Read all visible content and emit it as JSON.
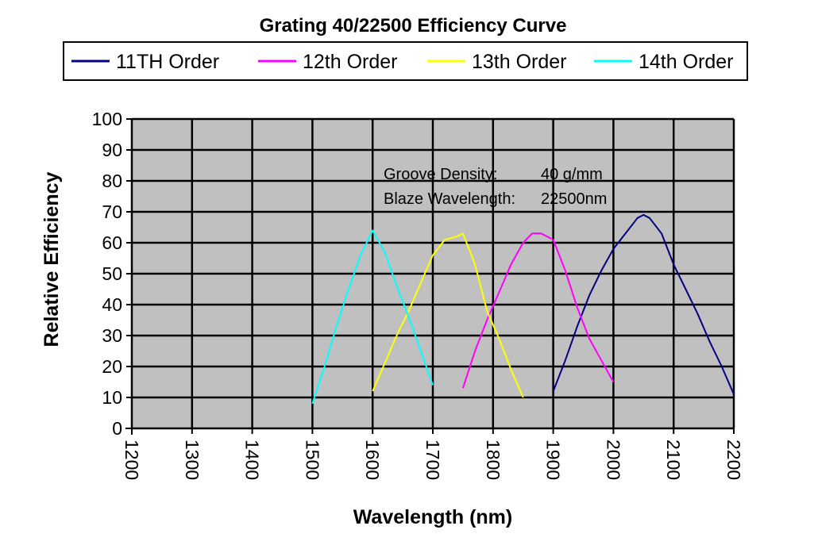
{
  "chart_data": {
    "type": "line",
    "title": "Grating 40/22500 Efficiency Curve",
    "xlabel": "Wavelength (nm)",
    "ylabel": "Relative Efficiency",
    "xlim": [
      1200,
      2200
    ],
    "ylim": [
      0,
      100
    ],
    "xticks": [
      "1200",
      "1300",
      "1400",
      "1500",
      "1600",
      "1700",
      "1800",
      "1900",
      "2000",
      "2100",
      "2200"
    ],
    "yticks": [
      "0",
      "10",
      "20",
      "30",
      "40",
      "50",
      "60",
      "70",
      "80",
      "90",
      "100"
    ],
    "grid": true,
    "legend_position": "top",
    "annotations": [
      {
        "label": "Groove Density:",
        "value": "40 g/mm"
      },
      {
        "label": "Blaze Wavelength:",
        "value": "22500nm"
      }
    ],
    "series": [
      {
        "name": "11TH Order",
        "color": "#000080",
        "x": [
          1900,
          1920,
          1940,
          1960,
          1980,
          2000,
          2020,
          2040,
          2050,
          2060,
          2080,
          2100,
          2120,
          2140,
          2160,
          2180,
          2200
        ],
        "y": [
          12,
          22,
          33,
          43,
          51,
          58,
          63,
          68,
          69,
          68,
          63,
          53,
          45,
          37,
          28,
          20,
          11
        ]
      },
      {
        "name": "12th Order",
        "color": "#FF00FF",
        "x": [
          1750,
          1770,
          1790,
          1810,
          1830,
          1850,
          1865,
          1880,
          1900,
          1920,
          1940,
          1960,
          1980,
          2000
        ],
        "y": [
          13,
          25,
          35,
          44,
          53,
          60,
          63,
          63,
          61,
          51,
          39,
          29,
          22,
          15
        ]
      },
      {
        "name": "13th Order",
        "color": "#FFFF00",
        "x": [
          1600,
          1620,
          1640,
          1660,
          1680,
          1700,
          1720,
          1740,
          1750,
          1770,
          1790,
          1810,
          1830,
          1850
        ],
        "y": [
          12,
          21,
          30,
          38,
          47,
          56,
          61,
          62,
          63,
          53,
          38,
          29,
          19,
          10
        ]
      },
      {
        "name": "14th Order",
        "color": "#00FFFF",
        "x": [
          1500,
          1520,
          1540,
          1560,
          1580,
          1600,
          1620,
          1640,
          1660,
          1680,
          1700
        ],
        "y": [
          8,
          20,
          33,
          45,
          56,
          64,
          57,
          46,
          36,
          25,
          14
        ]
      }
    ]
  }
}
